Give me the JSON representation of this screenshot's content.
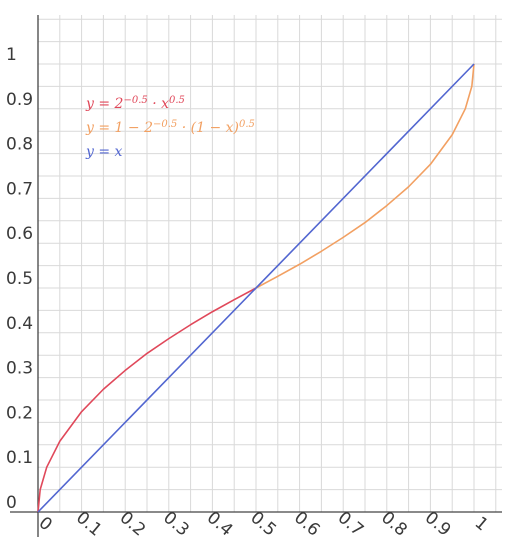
{
  "chart_data": {
    "type": "line",
    "title": "",
    "xlabel": "",
    "ylabel": "",
    "xlim": [
      0,
      1
    ],
    "ylim": [
      0,
      1
    ],
    "grid": true,
    "legend_position": "top-left",
    "x_ticks": [
      "0",
      "0.1",
      "0.2",
      "0.3",
      "0.4",
      "0.5",
      "0.6",
      "0.7",
      "0.8",
      "0.9",
      "1"
    ],
    "y_ticks": [
      "0",
      "0.1",
      "0.2",
      "0.3",
      "0.4",
      "0.5",
      "0.6",
      "0.7",
      "0.8",
      "0.9",
      "1"
    ],
    "series": [
      {
        "name": "y = 2^{-0.5} · x^{0.5}",
        "color": "#e0485a",
        "x": [
          0,
          0.005,
          0.02,
          0.05,
          0.1,
          0.15,
          0.2,
          0.25,
          0.3,
          0.35,
          0.4,
          0.45,
          0.5
        ],
        "y": [
          0,
          0.05,
          0.1,
          0.158,
          0.224,
          0.274,
          0.316,
          0.354,
          0.387,
          0.418,
          0.447,
          0.474,
          0.5
        ]
      },
      {
        "name": "y = 1 − 2^{-0.5} · (1 − x)^{0.5}",
        "color": "#f2a062",
        "x": [
          0.5,
          0.55,
          0.6,
          0.65,
          0.7,
          0.75,
          0.8,
          0.85,
          0.9,
          0.95,
          0.98,
          0.995,
          1
        ],
        "y": [
          0.5,
          0.526,
          0.553,
          0.582,
          0.613,
          0.646,
          0.684,
          0.726,
          0.776,
          0.842,
          0.9,
          0.95,
          1
        ]
      },
      {
        "name": "y = x",
        "color": "#5266d0",
        "x": [
          0,
          1
        ],
        "y": [
          0,
          1
        ]
      }
    ],
    "legend": [
      {
        "parts": [
          "y = 2",
          "−0.5",
          " · x",
          "0.5"
        ],
        "color": "#e0485a"
      },
      {
        "parts": [
          "y = 1 − 2",
          "−0.5",
          " · (1 − x)",
          "0.5"
        ],
        "color": "#f2a062"
      },
      {
        "parts": [
          "y = x"
        ],
        "color": "#5266d0"
      }
    ]
  }
}
